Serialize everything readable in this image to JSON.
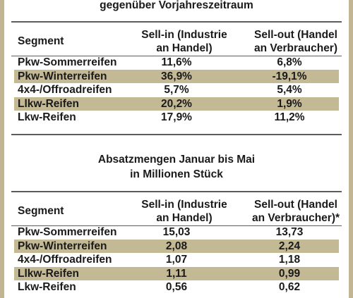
{
  "table1": {
    "caption": "gegenüber Vorjahreszeitraum",
    "header": {
      "segment": "Segment",
      "col1_line1": "Sell-in (Industrie",
      "col1_line2": "an Handel)",
      "col2_line1": "Sell-out (Handel",
      "col2_line2": "an Verbraucher)"
    },
    "rows": [
      {
        "segment": "Pkw-Sommerreifen",
        "sell_in": "11,6%",
        "sell_out": "6,8%",
        "shaded": false
      },
      {
        "segment": "Pkw-Winterreifen",
        "sell_in": "36,9%",
        "sell_out": "-19,1%",
        "shaded": true
      },
      {
        "segment": "4x4-/Offroadreifen",
        "sell_in": "5,7%",
        "sell_out": "5,4%",
        "shaded": false
      },
      {
        "segment": "Llkw-Reifen",
        "sell_in": "20,2%",
        "sell_out": "1,9%",
        "shaded": true
      },
      {
        "segment": "Lkw-Reifen",
        "sell_in": "17,9%",
        "sell_out": "11,2%",
        "shaded": false
      }
    ]
  },
  "table2": {
    "caption_line1": "Absatzmengen Januar bis Mai",
    "caption_line2": "in Millionen Stück",
    "header": {
      "segment": "Segment",
      "col1_line1": "Sell-in (Industrie",
      "col1_line2": "an Handel)",
      "col2_line1": "Sell-out (Handel",
      "col2_line2": "an Verbraucher)*"
    },
    "rows": [
      {
        "segment": "Pkw-Sommerreifen",
        "sell_in": "15,03",
        "sell_out": "13,73",
        "shaded": false
      },
      {
        "segment": "Pkw-Winterreifen",
        "sell_in": "2,08",
        "sell_out": "2,24",
        "shaded": true
      },
      {
        "segment": "4x4-/Offroadreifen",
        "sell_in": "1,07",
        "sell_out": "1,18",
        "shaded": false
      },
      {
        "segment": "Llkw-Reifen",
        "sell_in": "1,11",
        "sell_out": "0,99",
        "shaded": true
      },
      {
        "segment": "Lkw-Reifen",
        "sell_in": "0,56",
        "sell_out": "0,62",
        "shaded": false
      }
    ]
  },
  "colors": {
    "row_shade": "#c4b995",
    "frame": "#c2b594",
    "rule": "#5c5c5c",
    "text": "#1a1a1a"
  }
}
